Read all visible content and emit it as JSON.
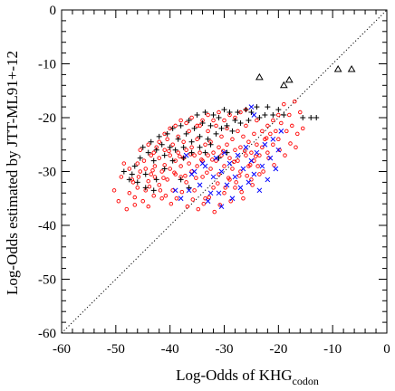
{
  "chart_data": {
    "type": "scatter",
    "xlabel": "Log-Odds of KHG",
    "xlabel_subscript": "codon",
    "ylabel": "Log-Odds estimated by JTT-ML91+-12",
    "xlim": [
      -60,
      0
    ],
    "ylim": [
      -60,
      0
    ],
    "x_ticks": [
      -60,
      -50,
      -40,
      -30,
      -20,
      -10,
      0
    ],
    "y_ticks": [
      -60,
      -50,
      -40,
      -30,
      -20,
      -10,
      0
    ],
    "grid": false,
    "legend": "none",
    "diagonal": {
      "style": "dotted",
      "from": [
        -60,
        -60
      ],
      "to": [
        0,
        0
      ],
      "color": "#000000"
    },
    "series": [
      {
        "marker": "circle",
        "color": "#ff0000",
        "points": [
          [
            -50.3,
            -33.5
          ],
          [
            -49.5,
            -35.5
          ],
          [
            -48.0,
            -37.0
          ],
          [
            -47.5,
            -34.0
          ],
          [
            -47.0,
            -31.5
          ],
          [
            -46.5,
            -34.8
          ],
          [
            -46.0,
            -33.0
          ],
          [
            -46.5,
            -36.2
          ],
          [
            -45.5,
            -30.0
          ],
          [
            -45.0,
            -35.5
          ],
          [
            -44.5,
            -33.5
          ],
          [
            -44.0,
            -31.8
          ],
          [
            -44.0,
            -36.5
          ],
          [
            -43.5,
            -30.5
          ],
          [
            -43.0,
            -34.5
          ],
          [
            -43.5,
            -27.0
          ],
          [
            -42.8,
            -29.0
          ],
          [
            -42.5,
            -25.5
          ],
          [
            -42.0,
            -32.5
          ],
          [
            -42.0,
            -27.5
          ],
          [
            -41.5,
            -30.0
          ],
          [
            -41.5,
            -35.0
          ],
          [
            -41.0,
            -26.0
          ],
          [
            -41.0,
            -28.8
          ],
          [
            -40.5,
            -24.0
          ],
          [
            -40.5,
            -31.5
          ],
          [
            -40.0,
            -27.0
          ],
          [
            -40.0,
            -29.5
          ],
          [
            -39.5,
            -25.0
          ],
          [
            -39.5,
            -33.5
          ],
          [
            -39.0,
            -28.0
          ],
          [
            -39.0,
            -30.5
          ],
          [
            -38.5,
            -26.5
          ],
          [
            -38.5,
            -23.5
          ],
          [
            -38.0,
            -29.0
          ],
          [
            -38.0,
            -31.0
          ],
          [
            -37.5,
            -27.5
          ],
          [
            -37.5,
            -24.5
          ],
          [
            -37.0,
            -26.0
          ],
          [
            -37.0,
            -32.0
          ],
          [
            -36.5,
            -22.5
          ],
          [
            -36.5,
            -28.5
          ],
          [
            -36.0,
            -25.5
          ],
          [
            -36.0,
            -30.0
          ],
          [
            -35.5,
            -27.0
          ],
          [
            -35.5,
            -33.5
          ],
          [
            -35.0,
            -24.0
          ],
          [
            -35.0,
            -29.0
          ],
          [
            -34.5,
            -26.5
          ],
          [
            -34.5,
            -21.5
          ],
          [
            -34.0,
            -28.0
          ],
          [
            -34.0,
            -31.0
          ],
          [
            -33.5,
            -25.0
          ],
          [
            -33.5,
            -35.0
          ],
          [
            -33.0,
            -27.0
          ],
          [
            -33.0,
            -22.5
          ],
          [
            -32.5,
            -29.5
          ],
          [
            -32.5,
            -24.5
          ],
          [
            -32.0,
            -26.5
          ],
          [
            -32.0,
            -33.0
          ],
          [
            -31.5,
            -28.0
          ],
          [
            -31.5,
            -21.5
          ],
          [
            -31.0,
            -25.5
          ],
          [
            -31.0,
            -30.5
          ],
          [
            -30.5,
            -27.0
          ],
          [
            -30.5,
            -23.5
          ],
          [
            -30.0,
            -29.0
          ],
          [
            -30.0,
            -34.0
          ],
          [
            -29.5,
            -25.0
          ],
          [
            -29.5,
            -22.0
          ],
          [
            -29.0,
            -27.5
          ],
          [
            -29.0,
            -31.5
          ],
          [
            -28.5,
            -24.0
          ],
          [
            -28.5,
            -29.5
          ],
          [
            -28.0,
            -26.0
          ],
          [
            -28.0,
            -33.0
          ],
          [
            -27.5,
            -22.5
          ],
          [
            -27.5,
            -28.0
          ],
          [
            -27.0,
            -25.5
          ],
          [
            -27.0,
            -30.0
          ],
          [
            -26.5,
            -23.5
          ],
          [
            -26.5,
            -35.0
          ],
          [
            -26.0,
            -27.0
          ],
          [
            -26.0,
            -21.5
          ],
          [
            -25.5,
            -29.0
          ],
          [
            -25.5,
            -24.5
          ],
          [
            -25.0,
            -26.5
          ],
          [
            -25.0,
            -31.5
          ],
          [
            -24.5,
            -23.0
          ],
          [
            -24.5,
            -28.0
          ],
          [
            -24.0,
            -25.0
          ],
          [
            -24.0,
            -20.5
          ],
          [
            -23.5,
            -27.0
          ],
          [
            -23.5,
            -30.5
          ],
          [
            -23.0,
            -22.5
          ],
          [
            -23.0,
            -25.5
          ],
          [
            -22.5,
            -24.0
          ],
          [
            -22.0,
            -21.5
          ],
          [
            -22.0,
            -26.5
          ],
          [
            -21.5,
            -23.0
          ],
          [
            -21.0,
            -20.5
          ],
          [
            -21.0,
            -25.0
          ],
          [
            -20.5,
            -22.5
          ],
          [
            -20.0,
            -19.5
          ],
          [
            -20.0,
            -24.0
          ],
          [
            -19.5,
            -21.0
          ],
          [
            -19.0,
            -17.5
          ],
          [
            -18.5,
            -22.5
          ],
          [
            -18.0,
            -19.5
          ],
          [
            -17.5,
            -21.5
          ],
          [
            -17.0,
            -17.0
          ],
          [
            -16.5,
            -23.0
          ],
          [
            -16.0,
            -19.0
          ],
          [
            -46.0,
            -28.5
          ],
          [
            -45.5,
            -26.0
          ],
          [
            -44.8,
            -28.0
          ],
          [
            -44.0,
            -25.0
          ],
          [
            -43.0,
            -26.5
          ],
          [
            -42.0,
            -24.5
          ],
          [
            -41.0,
            -23.0
          ],
          [
            -40.0,
            -22.0
          ],
          [
            -39.0,
            -21.5
          ],
          [
            -38.0,
            -20.5
          ],
          [
            -37.0,
            -21.0
          ],
          [
            -36.0,
            -20.0
          ],
          [
            -35.0,
            -21.5
          ],
          [
            -34.0,
            -20.5
          ],
          [
            -33.0,
            -19.5
          ],
          [
            -32.0,
            -20.5
          ],
          [
            -31.0,
            -19.0
          ],
          [
            -30.0,
            -20.5
          ],
          [
            -29.0,
            -19.5
          ],
          [
            -28.0,
            -20.0
          ],
          [
            -27.0,
            -19.0
          ],
          [
            -26.0,
            -18.5
          ],
          [
            -49.0,
            -31.0
          ],
          [
            -48.5,
            -28.5
          ],
          [
            -47.5,
            -29.5
          ],
          [
            -46.8,
            -32.0
          ],
          [
            -45.8,
            -31.0
          ],
          [
            -44.5,
            -29.5
          ],
          [
            -43.8,
            -32.8
          ],
          [
            -42.8,
            -31.0
          ],
          [
            -41.8,
            -33.5
          ],
          [
            -40.8,
            -34.5
          ],
          [
            -39.8,
            -36.0
          ],
          [
            -38.8,
            -35.0
          ],
          [
            -37.8,
            -33.8
          ],
          [
            -36.8,
            -36.5
          ],
          [
            -35.8,
            -35.2
          ],
          [
            -34.8,
            -37.0
          ],
          [
            -33.8,
            -36.0
          ],
          [
            -32.8,
            -34.8
          ],
          [
            -31.8,
            -37.5
          ],
          [
            -30.8,
            -36.2
          ],
          [
            -29.8,
            -33.0
          ],
          [
            -28.8,
            -35.5
          ],
          [
            -27.8,
            -32.0
          ],
          [
            -26.8,
            -33.8
          ],
          [
            -25.8,
            -30.8
          ],
          [
            -24.8,
            -32.5
          ],
          [
            -23.8,
            -29.0
          ],
          [
            -22.8,
            -30.0
          ],
          [
            -21.8,
            -27.5
          ],
          [
            -20.8,
            -28.8
          ],
          [
            -19.8,
            -26.0
          ],
          [
            -18.8,
            -27.0
          ],
          [
            -17.8,
            -24.8
          ],
          [
            -16.8,
            -25.5
          ],
          [
            -15.5,
            -22.0
          ],
          [
            -40.2,
            -26.2
          ],
          [
            -38.2,
            -27.2
          ],
          [
            -36.2,
            -26.8
          ],
          [
            -34.2,
            -27.8
          ],
          [
            -32.2,
            -27.8
          ],
          [
            -30.2,
            -26.2
          ],
          [
            -28.2,
            -28.2
          ],
          [
            -26.2,
            -26.2
          ],
          [
            -24.2,
            -27.2
          ],
          [
            -22.2,
            -23.8
          ],
          [
            -43.2,
            -29.8
          ],
          [
            -41.2,
            -31.2
          ],
          [
            -39.2,
            -30.2
          ],
          [
            -37.2,
            -30.8
          ],
          [
            -35.2,
            -31.2
          ],
          [
            -33.2,
            -30.2
          ],
          [
            -31.2,
            -32.2
          ],
          [
            -29.2,
            -31.2
          ],
          [
            -27.2,
            -30.8
          ],
          [
            -25.2,
            -28.8
          ]
        ]
      },
      {
        "marker": "plus",
        "color": "#000000",
        "points": [
          [
            -48.5,
            -30.0
          ],
          [
            -47.0,
            -30.5
          ],
          [
            -46.5,
            -29.0
          ],
          [
            -45.5,
            -27.5
          ],
          [
            -45.0,
            -25.5
          ],
          [
            -44.0,
            -26.5
          ],
          [
            -43.5,
            -24.5
          ],
          [
            -43.0,
            -28.0
          ],
          [
            -42.5,
            -26.0
          ],
          [
            -42.0,
            -23.5
          ],
          [
            -41.5,
            -25.0
          ],
          [
            -41.0,
            -27.0
          ],
          [
            -40.5,
            -23.0
          ],
          [
            -40.0,
            -25.5
          ],
          [
            -39.5,
            -22.0
          ],
          [
            -39.0,
            -26.0
          ],
          [
            -38.5,
            -24.0
          ],
          [
            -38.0,
            -21.5
          ],
          [
            -37.5,
            -25.5
          ],
          [
            -37.0,
            -23.0
          ],
          [
            -36.5,
            -20.5
          ],
          [
            -36.0,
            -24.5
          ],
          [
            -35.5,
            -22.0
          ],
          [
            -35.0,
            -19.5
          ],
          [
            -34.5,
            -23.5
          ],
          [
            -34.0,
            -21.0
          ],
          [
            -33.5,
            -19.0
          ],
          [
            -33.0,
            -24.0
          ],
          [
            -32.5,
            -21.5
          ],
          [
            -32.0,
            -19.5
          ],
          [
            -31.5,
            -23.0
          ],
          [
            -31.0,
            -20.0
          ],
          [
            -30.5,
            -22.0
          ],
          [
            -30.0,
            -18.5
          ],
          [
            -29.5,
            -21.5
          ],
          [
            -29.0,
            -19.0
          ],
          [
            -28.5,
            -22.5
          ],
          [
            -28.0,
            -20.5
          ],
          [
            -27.5,
            -19.0
          ],
          [
            -27.0,
            -21.0
          ],
          [
            -26.0,
            -18.5
          ],
          [
            -25.5,
            -20.5
          ],
          [
            -25.0,
            -19.0
          ],
          [
            -24.0,
            -18.0
          ],
          [
            -23.5,
            -20.0
          ],
          [
            -22.5,
            -19.5
          ],
          [
            -22.0,
            -18.0
          ],
          [
            -21.0,
            -19.5
          ],
          [
            -20.0,
            -18.5
          ],
          [
            -19.0,
            -19.5
          ],
          [
            -15.5,
            -20.0
          ],
          [
            -14.0,
            -20.0
          ],
          [
            -13.0,
            -20.0
          ],
          [
            -44.5,
            -30.5
          ],
          [
            -42.5,
            -31.5
          ],
          [
            -41.0,
            -29.5
          ],
          [
            -39.5,
            -28.0
          ],
          [
            -37.5,
            -27.5
          ],
          [
            -36.0,
            -26.5
          ],
          [
            -34.5,
            -25.5
          ],
          [
            -33.5,
            -26.5
          ],
          [
            -32.5,
            -25.0
          ],
          [
            -31.0,
            -27.5
          ],
          [
            -29.5,
            -26.5
          ],
          [
            -47.5,
            -31.5
          ],
          [
            -46.0,
            -32.0
          ],
          [
            -44.5,
            -33.0
          ],
          [
            -43.0,
            -33.5
          ],
          [
            -38.0,
            -31.5
          ],
          [
            -36.5,
            -33.0
          ]
        ]
      },
      {
        "marker": "cross",
        "color": "#0000ff",
        "points": [
          [
            -38.0,
            -35.0
          ],
          [
            -36.5,
            -33.5
          ],
          [
            -35.5,
            -30.0
          ],
          [
            -34.5,
            -32.5
          ],
          [
            -33.5,
            -29.0
          ],
          [
            -33.0,
            -35.5
          ],
          [
            -32.0,
            -31.0
          ],
          [
            -31.5,
            -27.5
          ],
          [
            -31.0,
            -34.0
          ],
          [
            -30.5,
            -30.0
          ],
          [
            -30.0,
            -26.5
          ],
          [
            -29.5,
            -32.5
          ],
          [
            -29.0,
            -28.5
          ],
          [
            -28.5,
            -35.0
          ],
          [
            -28.0,
            -31.0
          ],
          [
            -27.5,
            -27.0
          ],
          [
            -27.0,
            -33.0
          ],
          [
            -26.5,
            -29.5
          ],
          [
            -26.0,
            -25.5
          ],
          [
            -25.5,
            -32.0
          ],
          [
            -25.0,
            -28.0
          ],
          [
            -24.5,
            -30.5
          ],
          [
            -24.0,
            -26.5
          ],
          [
            -23.5,
            -33.5
          ],
          [
            -23.0,
            -29.0
          ],
          [
            -22.5,
            -25.0
          ],
          [
            -22.0,
            -31.5
          ],
          [
            -21.5,
            -27.5
          ],
          [
            -21.0,
            -24.0
          ],
          [
            -20.5,
            -29.5
          ],
          [
            -20.0,
            -26.0
          ],
          [
            -19.5,
            -22.5
          ],
          [
            -25.0,
            -18.0
          ],
          [
            -24.5,
            -19.5
          ],
          [
            -37.0,
            -27.0
          ],
          [
            -34.0,
            -28.5
          ],
          [
            -39.0,
            -33.5
          ],
          [
            -36.0,
            -30.5
          ],
          [
            -32.5,
            -34.0
          ],
          [
            -30.5,
            -36.5
          ]
        ]
      },
      {
        "marker": "triangle",
        "color": "#000000",
        "points": [
          [
            -23.5,
            -12.5
          ],
          [
            -19.0,
            -14.0
          ],
          [
            -18.0,
            -13.0
          ],
          [
            -9.0,
            -11.0
          ],
          [
            -6.5,
            -11.0
          ]
        ]
      }
    ]
  }
}
